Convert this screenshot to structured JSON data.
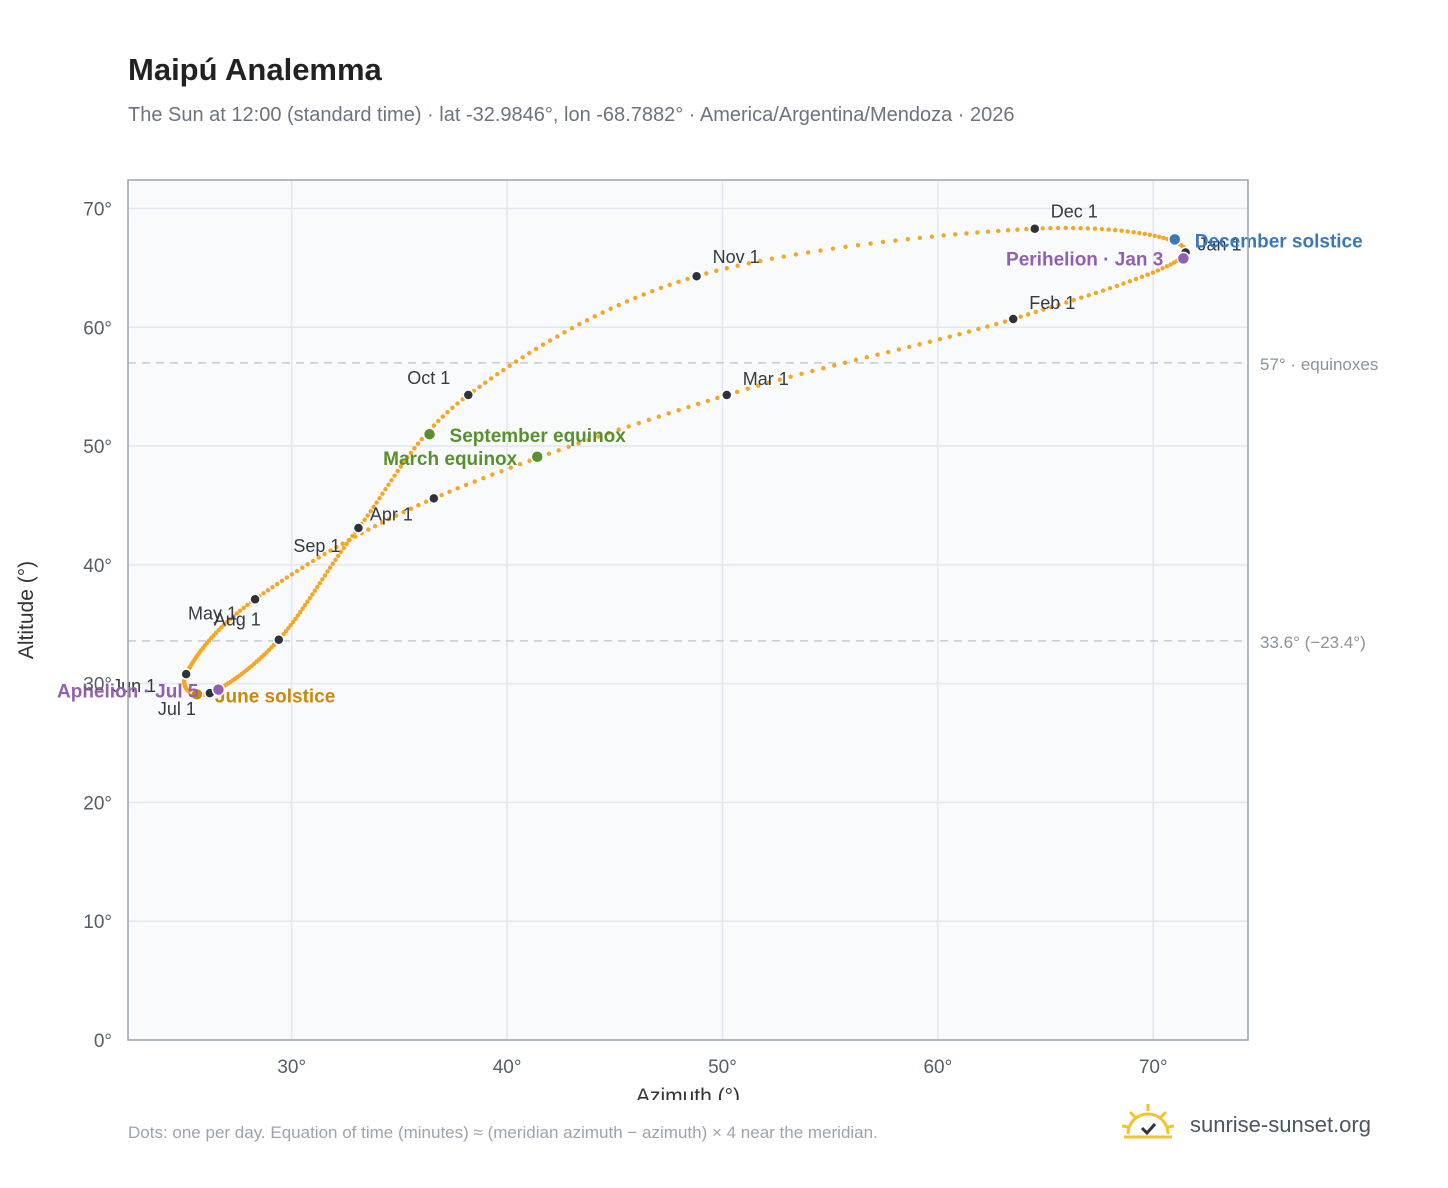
{
  "header": {
    "title": "Maipú Analemma",
    "subtitle": "The Sun at 12:00 (standard time) · lat -32.9846°, lon -68.7882° · America/Argentina/Mendoza · 2026"
  },
  "footer": {
    "note": "Dots: one per day. Equation of time (minutes) ≈ (meridian azimuth − azimuth) × 4 near the meridian.",
    "brand": "sunrise-sunset.org",
    "logo_icon": "sun-checkmark-icon"
  },
  "colors": {
    "curve": "#f5a623",
    "month_dot": "#2d3339",
    "equinox": "#5a8f2e",
    "june_solstice": "#c98a0a",
    "december_solstice": "#3a78b8",
    "apsis": "#9160b0",
    "plot_bg": "#f8fafc",
    "grid": "#e2e8f0",
    "reference_line": "#c4ccd6"
  },
  "chart_data": {
    "type": "scatter",
    "title": "Maipú Analemma",
    "xlabel": "Azimuth (°)",
    "ylabel": "Altitude (°)",
    "xlim": [
      22.4,
      74.4
    ],
    "ylim": [
      0,
      72.4
    ],
    "x_ticks": [
      30,
      40,
      50,
      60,
      70
    ],
    "y_ticks": [
      0,
      10,
      20,
      30,
      40,
      50,
      60,
      70
    ],
    "x_tick_labels": [
      "30°",
      "40°",
      "50°",
      "60°",
      "70°"
    ],
    "y_tick_labels": [
      "0°",
      "10°",
      "20°",
      "30°",
      "40°",
      "50°",
      "60°",
      "70°"
    ],
    "grid": true,
    "reference_lines": [
      {
        "y": 57.0,
        "label": "57° · equinoxes"
      },
      {
        "y": 33.6,
        "label": "33.6° (−23.4°)"
      }
    ],
    "month_markers": [
      {
        "label": "Jan 1",
        "x": 71.5,
        "y": 66.3
      },
      {
        "label": "Feb 1",
        "x": 63.5,
        "y": 60.7
      },
      {
        "label": "Mar 1",
        "x": 50.2,
        "y": 54.3
      },
      {
        "label": "Apr 1",
        "x": 36.6,
        "y": 45.6
      },
      {
        "label": "May 1",
        "x": 28.3,
        "y": 37.1
      },
      {
        "label": "Jun 1",
        "x": 25.1,
        "y": 30.8
      },
      {
        "label": "Jul 1",
        "x": 26.2,
        "y": 29.2
      },
      {
        "label": "Aug 1",
        "x": 29.4,
        "y": 33.7
      },
      {
        "label": "Sep 1",
        "x": 33.1,
        "y": 43.1
      },
      {
        "label": "Oct 1",
        "x": 38.2,
        "y": 54.3
      },
      {
        "label": "Nov 1",
        "x": 48.8,
        "y": 64.3
      },
      {
        "label": "Dec 1",
        "x": 64.5,
        "y": 68.3
      }
    ],
    "events": [
      {
        "label": "March equinox",
        "x": 41.4,
        "y": 49.1,
        "kind": "equinox"
      },
      {
        "label": "September equinox",
        "x": 36.4,
        "y": 51.0,
        "kind": "equinox"
      },
      {
        "label": "June solstice",
        "x": 25.6,
        "y": 29.1,
        "kind": "june_solstice"
      },
      {
        "label": "December solstice",
        "x": 71.0,
        "y": 67.4,
        "kind": "december_solstice"
      },
      {
        "label": "Perihelion · Jan 3",
        "x": 71.4,
        "y": 65.8,
        "kind": "apsis"
      },
      {
        "label": "Aphelion · Jul 5",
        "x": 26.6,
        "y": 29.5,
        "kind": "apsis"
      }
    ]
  }
}
